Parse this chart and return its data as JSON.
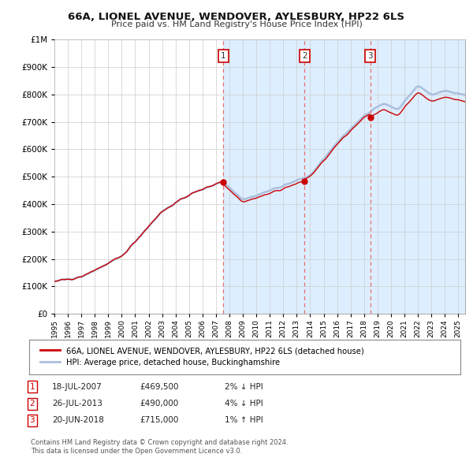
{
  "title": "66A, LIONEL AVENUE, WENDOVER, AYLESBURY, HP22 6LS",
  "subtitle": "Price paid vs. HM Land Registry's House Price Index (HPI)",
  "legend_label_red": "66A, LIONEL AVENUE, WENDOVER, AYLESBURY, HP22 6LS (detached house)",
  "legend_label_blue": "HPI: Average price, detached house, Buckinghamshire",
  "footer1": "Contains HM Land Registry data © Crown copyright and database right 2024.",
  "footer2": "This data is licensed under the Open Government Licence v3.0.",
  "transactions": [
    {
      "num": 1,
      "date": "18-JUL-2007",
      "price": "£469,500",
      "hpi": "2% ↓ HPI",
      "x_year": 2007.55
    },
    {
      "num": 2,
      "date": "26-JUL-2013",
      "price": "£490,000",
      "hpi": "4% ↓ HPI",
      "x_year": 2013.57
    },
    {
      "num": 3,
      "date": "20-JUN-2018",
      "price": "£715,000",
      "hpi": "1% ↑ HPI",
      "x_year": 2018.47
    }
  ],
  "ylim": [
    0,
    1000000
  ],
  "xlim_start": 1995,
  "xlim_end": 2025.5,
  "background_color": "#ffffff",
  "plot_bg_color": "#ffffff",
  "grid_color": "#cccccc",
  "hpi_color": "#aabfdd",
  "price_color": "#cc0000",
  "vline_color": "#e87070",
  "shade_color": "#ddeeff",
  "marker_dot_color": "#cc0000"
}
